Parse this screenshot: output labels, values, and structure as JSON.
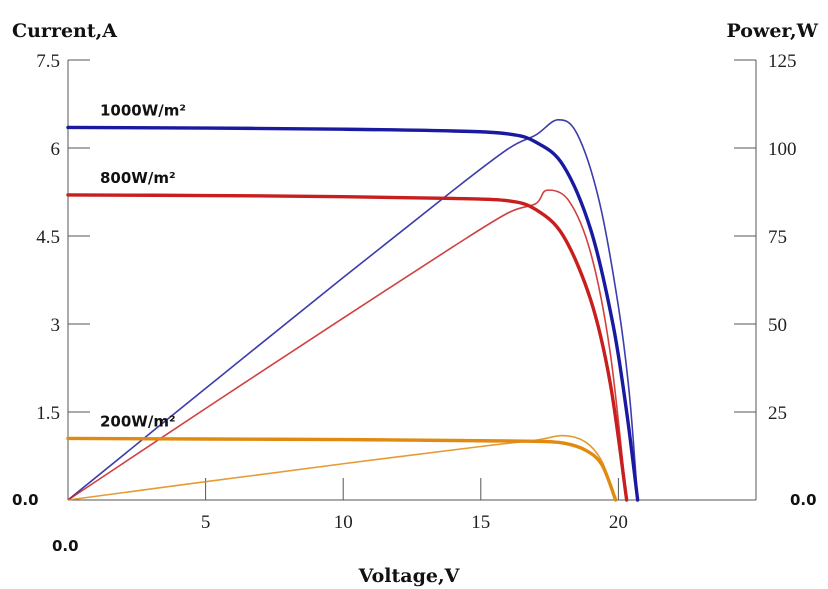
{
  "chart_data": {
    "type": "line",
    "xlabel": "Voltage,V",
    "ylabel_left": "Current,A",
    "ylabel_right": "Power,W",
    "xlim": [
      0,
      25
    ],
    "ylim_left": [
      0,
      7.5
    ],
    "ylim_right": [
      0,
      125
    ],
    "x_ticks": [
      "5",
      "10",
      "15",
      "20"
    ],
    "y_left_ticks": [
      "1.5",
      "3",
      "4.5",
      "6",
      "7.5"
    ],
    "y_right_ticks": [
      "25",
      "50",
      "75",
      "100",
      "125"
    ],
    "zero_labels": {
      "x_origin": "0.0",
      "y_left_origin": "0.0",
      "y_right_origin": "0.0"
    },
    "grid": false,
    "series": [
      {
        "name": "1000W/m²",
        "color": "#1a1aa0",
        "voc": 20.7,
        "iv": [
          [
            0,
            6.35
          ],
          [
            5,
            6.34
          ],
          [
            10,
            6.32
          ],
          [
            14,
            6.29
          ],
          [
            16,
            6.24
          ],
          [
            17,
            6.1
          ],
          [
            18,
            5.7
          ],
          [
            19,
            4.6
          ],
          [
            19.8,
            3.0
          ],
          [
            20.3,
            1.5
          ],
          [
            20.7,
            0
          ]
        ],
        "pv": [
          [
            0,
            0
          ],
          [
            5,
            31.7
          ],
          [
            10,
            63.2
          ],
          [
            14,
            88
          ],
          [
            16,
            99.8
          ],
          [
            17,
            103.7
          ],
          [
            17.8,
            108
          ],
          [
            18.5,
            104
          ],
          [
            19.3,
            85
          ],
          [
            20,
            55
          ],
          [
            20.4,
            30
          ],
          [
            20.7,
            0
          ]
        ]
      },
      {
        "name": "800W/m²",
        "color": "#c81e1e",
        "voc": 20.3,
        "iv": [
          [
            0,
            5.2
          ],
          [
            5,
            5.19
          ],
          [
            10,
            5.17
          ],
          [
            14,
            5.14
          ],
          [
            16,
            5.1
          ],
          [
            17,
            4.95
          ],
          [
            18,
            4.5
          ],
          [
            19,
            3.4
          ],
          [
            19.7,
            2.0
          ],
          [
            20.3,
            0
          ]
        ],
        "pv": [
          [
            0,
            0
          ],
          [
            5,
            26
          ],
          [
            10,
            51.7
          ],
          [
            14,
            72
          ],
          [
            16,
            81.6
          ],
          [
            17,
            84.2
          ],
          [
            17.4,
            88
          ],
          [
            18.2,
            85
          ],
          [
            19,
            70
          ],
          [
            19.7,
            42
          ],
          [
            20.3,
            0
          ]
        ]
      },
      {
        "name": "200W/m²",
        "color": "#e08a10",
        "voc": 19.9,
        "iv": [
          [
            0,
            1.05
          ],
          [
            5,
            1.04
          ],
          [
            10,
            1.03
          ],
          [
            15,
            1.01
          ],
          [
            17,
            1.0
          ],
          [
            18,
            0.97
          ],
          [
            18.8,
            0.85
          ],
          [
            19.4,
            0.6
          ],
          [
            19.9,
            0
          ]
        ],
        "pv": [
          [
            0,
            0
          ],
          [
            5,
            5.2
          ],
          [
            10,
            10.3
          ],
          [
            15,
            15.2
          ],
          [
            17,
            17
          ],
          [
            18,
            18.3
          ],
          [
            18.8,
            16.5
          ],
          [
            19.4,
            11
          ],
          [
            19.9,
            0
          ]
        ]
      }
    ]
  }
}
